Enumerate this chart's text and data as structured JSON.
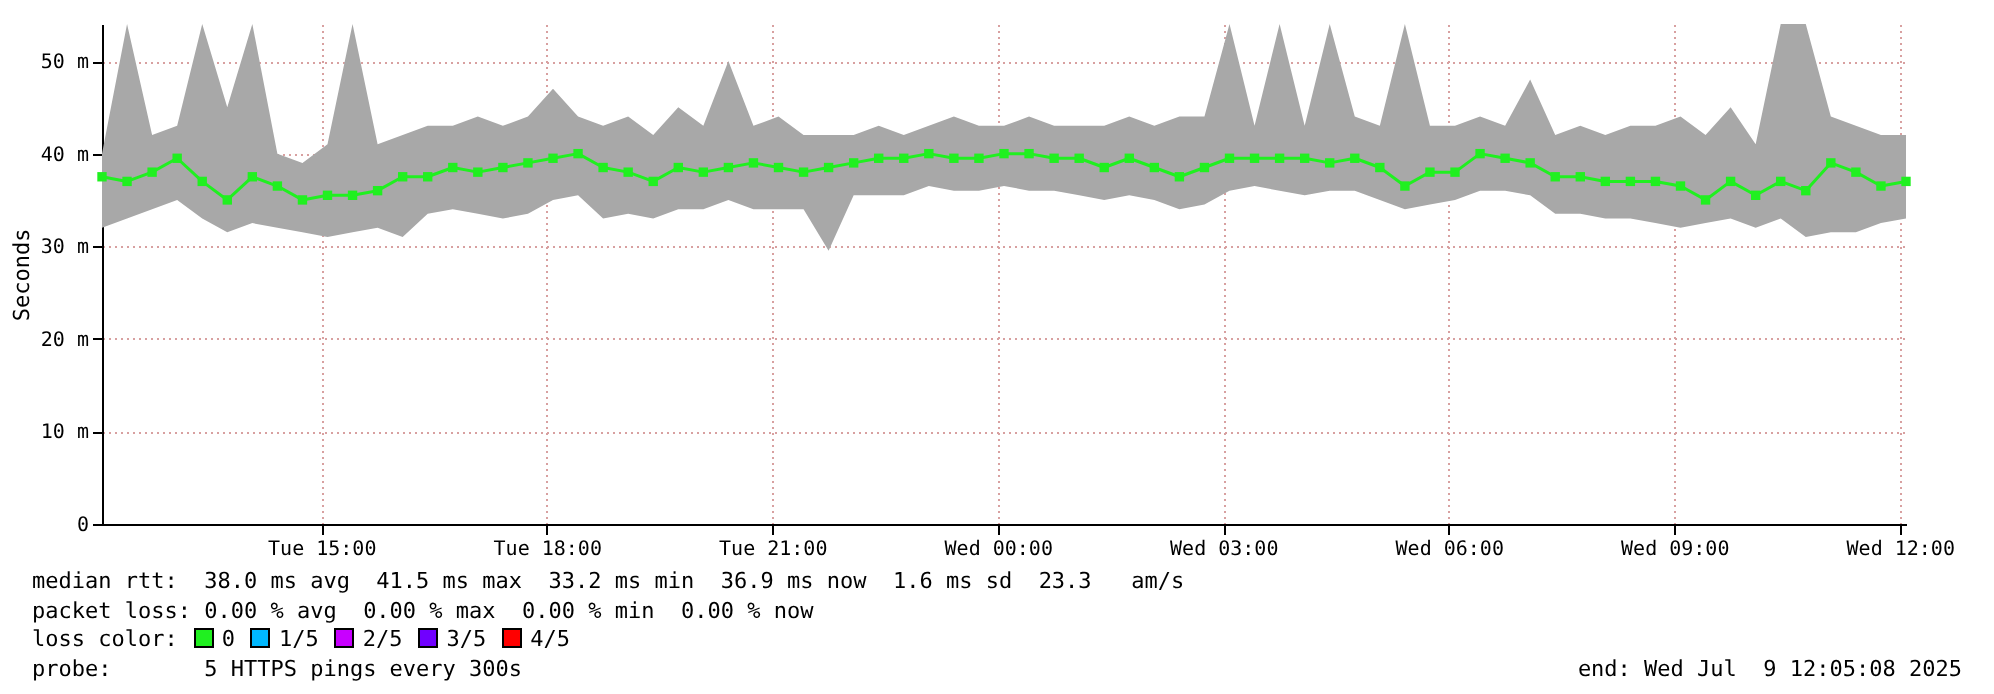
{
  "chart_data": {
    "type": "line",
    "ylabel": "Seconds",
    "legend_title": "loss color:",
    "legend": "bottom",
    "grid": true,
    "marker": "square",
    "xlim": [
      "2025-07-08T12:05",
      "2025-07-09T12:05"
    ],
    "xticks": [
      {
        "value": "2025-07-08T15:00",
        "label": "Tue 15:00"
      },
      {
        "value": "2025-07-08T18:00",
        "label": "Tue 18:00"
      },
      {
        "value": "2025-07-08T21:00",
        "label": "Tue 21:00"
      },
      {
        "value": "2025-07-09T00:00",
        "label": "Wed 00:00"
      },
      {
        "value": "2025-07-09T03:00",
        "label": "Wed 03:00"
      },
      {
        "value": "2025-07-09T06:00",
        "label": "Wed 06:00"
      },
      {
        "value": "2025-07-09T09:00",
        "label": "Wed 09:00"
      },
      {
        "value": "2025-07-09T12:00",
        "label": "Wed 12:00"
      }
    ],
    "ylim": [
      0,
      54
    ],
    "yticks": [
      0,
      {
        "value": 10,
        "label": "10 m"
      },
      {
        "value": 20,
        "label": "20 m"
      },
      {
        "value": 30,
        "label": "30 m"
      },
      {
        "value": 40,
        "label": "40 m"
      },
      {
        "value": 50,
        "label": "50 m"
      }
    ],
    "x": [
      "2025-07-08T12:05",
      "2025-07-08T12:25",
      "2025-07-08T12:45",
      "2025-07-08T13:05",
      "2025-07-08T13:25",
      "2025-07-08T13:45",
      "2025-07-08T14:05",
      "2025-07-08T14:25",
      "2025-07-08T14:45",
      "2025-07-08T15:05",
      "2025-07-08T15:25",
      "2025-07-08T15:45",
      "2025-07-08T16:05",
      "2025-07-08T16:25",
      "2025-07-08T16:45",
      "2025-07-08T17:05",
      "2025-07-08T17:25",
      "2025-07-08T17:45",
      "2025-07-08T18:05",
      "2025-07-08T18:25",
      "2025-07-08T18:45",
      "2025-07-08T19:05",
      "2025-07-08T19:25",
      "2025-07-08T19:45",
      "2025-07-08T20:05",
      "2025-07-08T20:25",
      "2025-07-08T20:45",
      "2025-07-08T21:05",
      "2025-07-08T21:25",
      "2025-07-08T21:45",
      "2025-07-08T22:05",
      "2025-07-08T22:25",
      "2025-07-08T22:45",
      "2025-07-08T23:05",
      "2025-07-08T23:25",
      "2025-07-08T23:45",
      "2025-07-09T00:05",
      "2025-07-09T00:25",
      "2025-07-09T00:45",
      "2025-07-09T01:05",
      "2025-07-09T01:25",
      "2025-07-09T01:45",
      "2025-07-09T02:05",
      "2025-07-09T02:25",
      "2025-07-09T02:45",
      "2025-07-09T03:05",
      "2025-07-09T03:25",
      "2025-07-09T03:45",
      "2025-07-09T04:05",
      "2025-07-09T04:25",
      "2025-07-09T04:45",
      "2025-07-09T05:05",
      "2025-07-09T05:25",
      "2025-07-09T05:45",
      "2025-07-09T06:05",
      "2025-07-09T06:25",
      "2025-07-09T06:45",
      "2025-07-09T07:05",
      "2025-07-09T07:25",
      "2025-07-09T07:45",
      "2025-07-09T08:05",
      "2025-07-09T08:25",
      "2025-07-09T08:45",
      "2025-07-09T09:05",
      "2025-07-09T09:25",
      "2025-07-09T09:45",
      "2025-07-09T10:05",
      "2025-07-09T10:25",
      "2025-07-09T10:45",
      "2025-07-09T11:05",
      "2025-07-09T11:25",
      "2025-07-09T11:45",
      "2025-07-09T12:05"
    ],
    "series": [
      {
        "name": "0",
        "color": "#20f020",
        "values": [
          37.5,
          37,
          38,
          39.5,
          37,
          35,
          37.5,
          36.5,
          35,
          35.5,
          35.5,
          36,
          37.5,
          37.5,
          38.5,
          38,
          38.5,
          39,
          39.5,
          40,
          38.5,
          38,
          37,
          38.5,
          38,
          38.5,
          39,
          38.5,
          38,
          38.5,
          39,
          39.5,
          39.5,
          40,
          39.5,
          39.5,
          40,
          40,
          39.5,
          39.5,
          38.5,
          39.5,
          38.5,
          37.5,
          38.5,
          39.5,
          39.5,
          39.5,
          39.5,
          39,
          39.5,
          38.5,
          36.5,
          38,
          38,
          40,
          39.5,
          39,
          37.5,
          37.5,
          37,
          37,
          37,
          36.5,
          35,
          37,
          35.5,
          37,
          36,
          39,
          38,
          36.5,
          37
        ],
        "lower": [
          32,
          33,
          34,
          35,
          33,
          31.5,
          32.5,
          32,
          31.5,
          31,
          31.5,
          32,
          31,
          33.5,
          34,
          33.5,
          33,
          33.5,
          35,
          35.5,
          33,
          33.5,
          33,
          34,
          34,
          35,
          34,
          34,
          34,
          29.5,
          35.5,
          35.5,
          35.5,
          36.5,
          36,
          36,
          36.5,
          36,
          36,
          35.5,
          35,
          35.5,
          35,
          34,
          34.5,
          36,
          36.5,
          36,
          35.5,
          36,
          36,
          35,
          34,
          34.5,
          35,
          36,
          36,
          35.5,
          33.5,
          33.5,
          33,
          33,
          32.5,
          32,
          32.5,
          33,
          32,
          33,
          31,
          31.5,
          31.5,
          32.5,
          33
        ],
        "upper": [
          40,
          54,
          42,
          43,
          54,
          45,
          54,
          40,
          39,
          41,
          54,
          41,
          42,
          43,
          43,
          44,
          43,
          44,
          47,
          44,
          43,
          44,
          42,
          45,
          43,
          50,
          43,
          44,
          42,
          42,
          42,
          43,
          42,
          43,
          44,
          43,
          43,
          44,
          43,
          43,
          43,
          44,
          43,
          44,
          44,
          54,
          43,
          54,
          43,
          54,
          44,
          43,
          54,
          43,
          43,
          44,
          43,
          48,
          42,
          43,
          42,
          43,
          43,
          44,
          42,
          45,
          41,
          54,
          54,
          44,
          43,
          42,
          42
        ]
      },
      {
        "name": "1/5",
        "color": "#00b8ff",
        "values": [
          null,
          null,
          null,
          null,
          null,
          null,
          null,
          null,
          null,
          null,
          null,
          null,
          null,
          null,
          null,
          null,
          null,
          null,
          null,
          null,
          null,
          null,
          null,
          null,
          null,
          null,
          null,
          null,
          null,
          null,
          null,
          null,
          null,
          null,
          null,
          null,
          null,
          null,
          null,
          null,
          null,
          null,
          null,
          null,
          null,
          null,
          null,
          null,
          null,
          null,
          null,
          null,
          null,
          null,
          null,
          null,
          null,
          null,
          null,
          null,
          null,
          null,
          null,
          null,
          null,
          null,
          null,
          null,
          null,
          null,
          null,
          null,
          null
        ]
      },
      {
        "name": "2/5",
        "color": "#c800ff",
        "values": [
          null,
          null,
          null,
          null,
          null,
          null,
          null,
          null,
          null,
          null,
          null,
          null,
          null,
          null,
          null,
          null,
          null,
          null,
          null,
          null,
          null,
          null,
          null,
          null,
          null,
          null,
          null,
          null,
          null,
          null,
          null,
          null,
          null,
          null,
          null,
          null,
          null,
          null,
          null,
          null,
          null,
          null,
          null,
          null,
          null,
          null,
          null,
          null,
          null,
          null,
          null,
          null,
          null,
          null,
          null,
          null,
          null,
          null,
          null,
          null,
          null,
          null,
          null,
          null,
          null,
          null,
          null,
          null,
          null,
          null,
          null,
          null,
          null
        ]
      },
      {
        "name": "3/5",
        "color": "#7000ff",
        "values": [
          null,
          null,
          null,
          null,
          null,
          null,
          null,
          null,
          null,
          null,
          null,
          null,
          null,
          null,
          null,
          null,
          null,
          null,
          null,
          null,
          null,
          null,
          null,
          null,
          null,
          null,
          null,
          null,
          null,
          null,
          null,
          null,
          null,
          null,
          null,
          null,
          null,
          null,
          null,
          null,
          null,
          null,
          null,
          null,
          null,
          null,
          null,
          null,
          null,
          null,
          null,
          null,
          null,
          null,
          null,
          null,
          null,
          null,
          null,
          null,
          null,
          null,
          null,
          null,
          null,
          null,
          null,
          null,
          null,
          null,
          null,
          null,
          null
        ]
      },
      {
        "name": "4/5",
        "color": "#ff0000",
        "values": [
          null,
          null,
          null,
          null,
          null,
          null,
          null,
          null,
          null,
          null,
          null,
          null,
          null,
          null,
          null,
          null,
          null,
          null,
          null,
          null,
          null,
          null,
          null,
          null,
          null,
          null,
          null,
          null,
          null,
          null,
          null,
          null,
          null,
          null,
          null,
          null,
          null,
          null,
          null,
          null,
          null,
          null,
          null,
          null,
          null,
          null,
          null,
          null,
          null,
          null,
          null,
          null,
          null,
          null,
          null,
          null,
          null,
          null,
          null,
          null,
          null,
          null,
          null,
          null,
          null,
          null,
          null,
          null,
          null,
          null,
          null,
          null,
          null
        ]
      }
    ],
    "annotations": [
      "median rtt:  38.0 ms avg  41.5 ms max  33.2 ms min  36.9 ms now  1.6 ms sd  23.3   am/s",
      "packet loss: 0.00 % avg  0.00 % max  0.00 % min  0.00 % now",
      "probe:       5 HTTPS pings every 300s",
      "end: Wed Jul  9 12:05:08 2025"
    ]
  }
}
